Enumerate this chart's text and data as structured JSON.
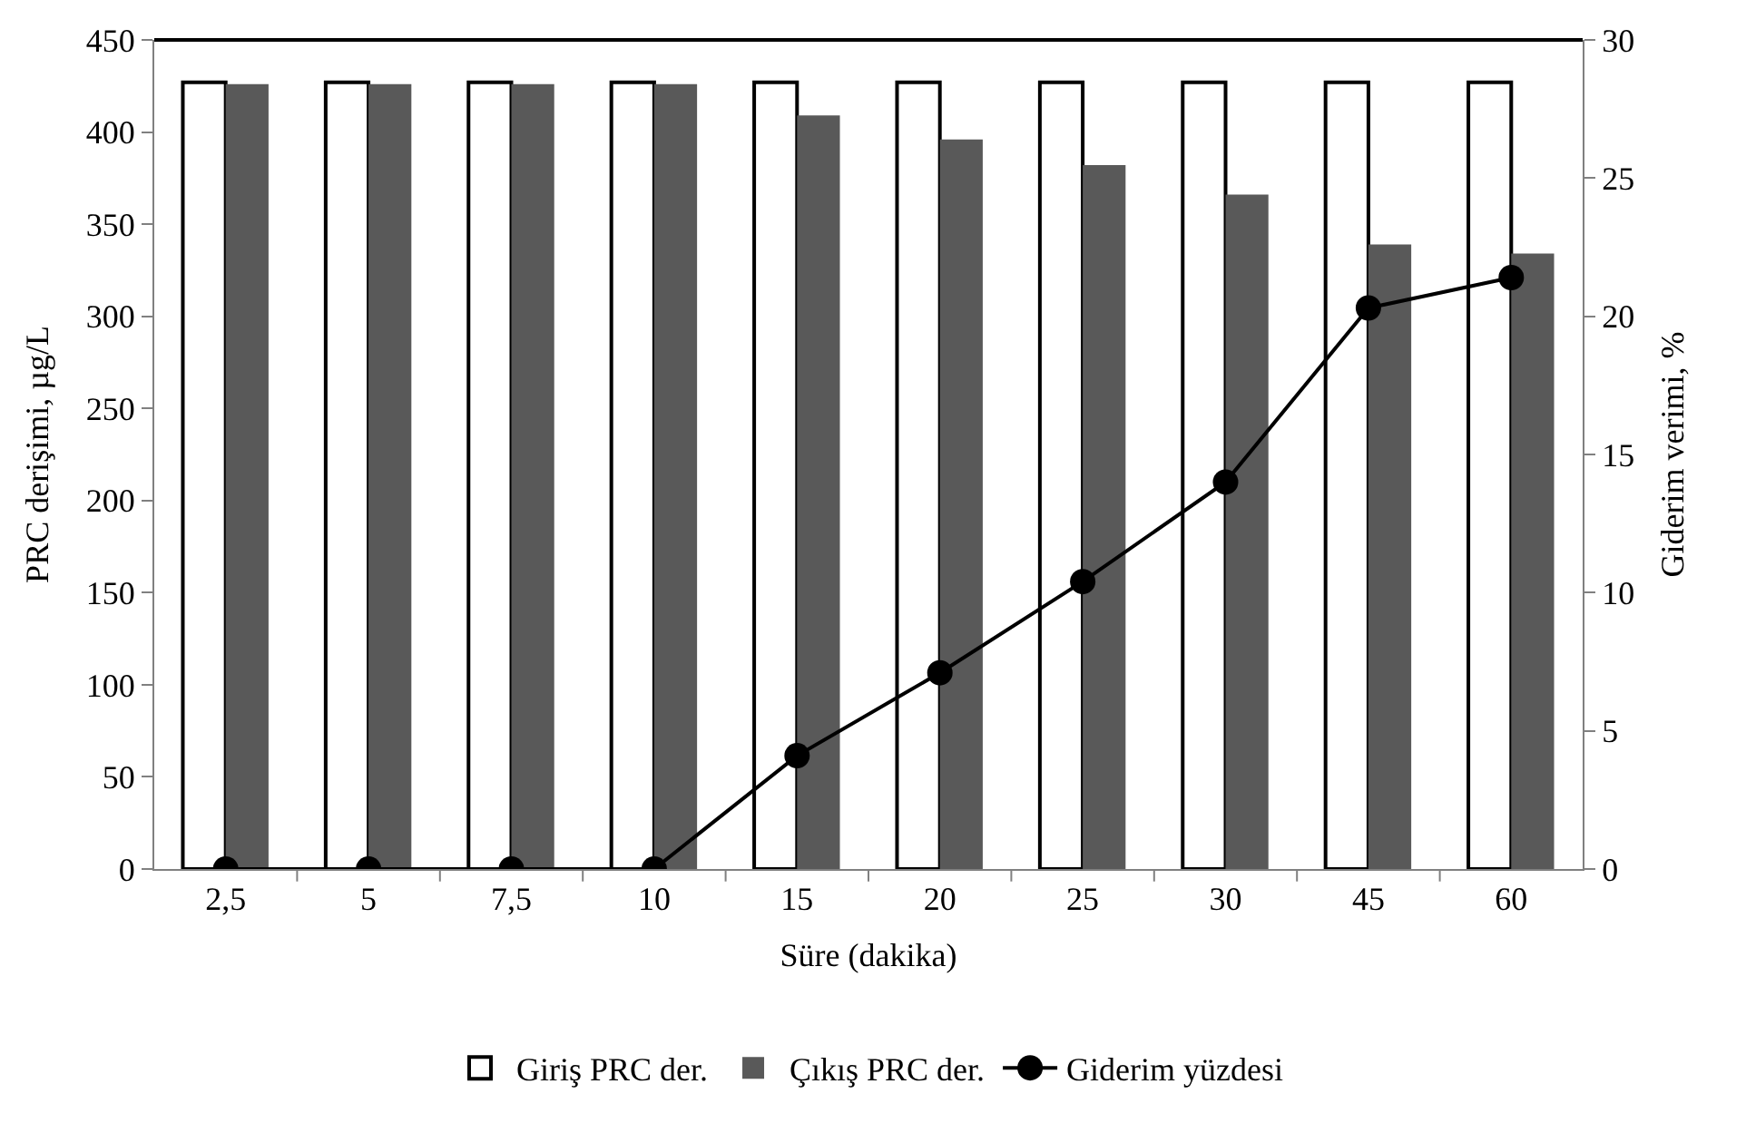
{
  "chart_data": {
    "type": "bar",
    "xlabel": "Süre (dakika)",
    "ylabel": "PRC derişimi, µg/L",
    "y2label": "Giderim verimi, %",
    "categories": [
      "2,5",
      "5",
      "7,5",
      "10",
      "15",
      "20",
      "25",
      "30",
      "45",
      "60"
    ],
    "series": [
      {
        "name": "Giriş PRC der.",
        "color": "#ffffff",
        "values": [
          427,
          427,
          427,
          427,
          427,
          427,
          427,
          427,
          427,
          427
        ]
      },
      {
        "name": "Çıkış PRC der.",
        "color": "#595959",
        "values": [
          426,
          426,
          426,
          426,
          409,
          396,
          382,
          366,
          339,
          334
        ]
      },
      {
        "name": "Giderim yüzdesi",
        "type": "line",
        "axis": "y2",
        "color": "#000000",
        "marker": "circle",
        "values": [
          0,
          0,
          0,
          0,
          4.1,
          7.1,
          10.4,
          14.0,
          20.3,
          21.4
        ]
      }
    ],
    "ylim": [
      0,
      450
    ],
    "yticks": [
      0,
      50,
      100,
      150,
      200,
      250,
      300,
      350,
      400,
      450
    ],
    "y2lim": [
      0,
      30
    ],
    "y2ticks": [
      0,
      5,
      10,
      15,
      20,
      25,
      30
    ],
    "legend": "bottom"
  }
}
